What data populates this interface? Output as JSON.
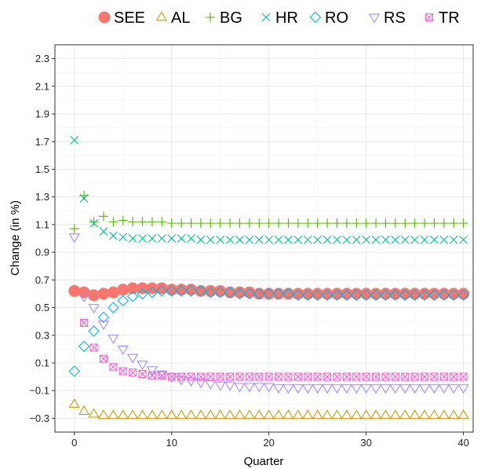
{
  "chart_data": {
    "type": "scatter",
    "title": "",
    "xlabel": "Quarter",
    "ylabel": "Change (in %)",
    "xlim": [
      -2,
      41
    ],
    "ylim": [
      -0.4,
      2.4
    ],
    "x_ticks": [
      0,
      10,
      20,
      30,
      40
    ],
    "x_tick_labels": [
      "0",
      "10",
      "20",
      "30",
      "40"
    ],
    "y_ticks": [
      -0.3,
      -0.1,
      0.1,
      0.3,
      0.5,
      0.7,
      0.9,
      1.1,
      1.3,
      1.5,
      1.7,
      1.9,
      2.1,
      2.3
    ],
    "y_tick_labels": [
      "−0.3",
      "−0.1",
      "0.1",
      "0.3",
      "0.5",
      "0.7",
      "0.9",
      "1.1",
      "1.3",
      "1.5",
      "1.7",
      "1.9",
      "2.1",
      "2.3"
    ],
    "grid": true,
    "legend_position": "top",
    "x": [
      0,
      1,
      2,
      3,
      4,
      5,
      6,
      7,
      8,
      9,
      10,
      11,
      12,
      13,
      14,
      15,
      16,
      17,
      18,
      19,
      20,
      21,
      22,
      23,
      24,
      25,
      26,
      27,
      28,
      29,
      30,
      31,
      32,
      33,
      34,
      35,
      36,
      37,
      38,
      39,
      40
    ],
    "series": [
      {
        "name": "SEE",
        "marker": "circle-filled",
        "color": "#f8766d",
        "values": [
          0.62,
          0.61,
          0.59,
          0.6,
          0.61,
          0.63,
          0.64,
          0.64,
          0.64,
          0.64,
          0.63,
          0.63,
          0.63,
          0.62,
          0.62,
          0.62,
          0.61,
          0.61,
          0.61,
          0.6,
          0.6,
          0.6,
          0.6,
          0.6,
          0.6,
          0.6,
          0.6,
          0.6,
          0.6,
          0.6,
          0.6,
          0.6,
          0.6,
          0.6,
          0.6,
          0.6,
          0.6,
          0.6,
          0.6,
          0.6,
          0.6
        ]
      },
      {
        "name": "AL",
        "marker": "triangle-up",
        "color": "#c49a00",
        "values": [
          -0.2,
          -0.25,
          -0.27,
          -0.28,
          -0.28,
          -0.28,
          -0.28,
          -0.28,
          -0.28,
          -0.28,
          -0.28,
          -0.28,
          -0.28,
          -0.28,
          -0.28,
          -0.28,
          -0.28,
          -0.28,
          -0.28,
          -0.28,
          -0.28,
          -0.28,
          -0.28,
          -0.28,
          -0.28,
          -0.28,
          -0.28,
          -0.28,
          -0.28,
          -0.28,
          -0.28,
          -0.28,
          -0.28,
          -0.28,
          -0.28,
          -0.28,
          -0.28,
          -0.28,
          -0.28,
          -0.28,
          -0.28
        ]
      },
      {
        "name": "BG",
        "marker": "plus",
        "color": "#53b400",
        "values": [
          1.07,
          1.31,
          1.12,
          1.16,
          1.12,
          1.13,
          1.12,
          1.12,
          1.12,
          1.12,
          1.11,
          1.11,
          1.11,
          1.11,
          1.11,
          1.11,
          1.11,
          1.11,
          1.11,
          1.11,
          1.11,
          1.11,
          1.11,
          1.11,
          1.11,
          1.11,
          1.11,
          1.11,
          1.11,
          1.11,
          1.11,
          1.11,
          1.11,
          1.11,
          1.11,
          1.11,
          1.11,
          1.11,
          1.11,
          1.11,
          1.11
        ]
      },
      {
        "name": "HR",
        "marker": "cross",
        "color": "#00c094",
        "values": [
          1.71,
          1.29,
          1.11,
          1.05,
          1.02,
          1.01,
          1.0,
          1.0,
          1.0,
          1.0,
          1.0,
          1.0,
          1.0,
          0.99,
          0.99,
          0.99,
          0.99,
          0.99,
          0.99,
          0.99,
          0.99,
          0.99,
          0.99,
          0.99,
          0.99,
          0.99,
          0.99,
          0.99,
          0.99,
          0.99,
          0.99,
          0.99,
          0.99,
          0.99,
          0.99,
          0.99,
          0.99,
          0.99,
          0.99,
          0.99,
          0.99
        ]
      },
      {
        "name": "RO",
        "marker": "diamond",
        "color": "#00b6eb",
        "values": [
          0.04,
          0.22,
          0.33,
          0.43,
          0.5,
          0.55,
          0.58,
          0.6,
          0.61,
          0.62,
          0.62,
          0.62,
          0.62,
          0.62,
          0.61,
          0.61,
          0.61,
          0.6,
          0.6,
          0.6,
          0.6,
          0.6,
          0.6,
          0.59,
          0.59,
          0.59,
          0.59,
          0.59,
          0.59,
          0.59,
          0.59,
          0.59,
          0.59,
          0.59,
          0.59,
          0.59,
          0.59,
          0.59,
          0.59,
          0.59,
          0.59
        ]
      },
      {
        "name": "RS",
        "marker": "triangle-down",
        "color": "#a58aff",
        "values": [
          1.01,
          0.58,
          0.5,
          0.38,
          0.28,
          0.2,
          0.14,
          0.09,
          0.05,
          0.02,
          0.0,
          -0.02,
          -0.03,
          -0.04,
          -0.05,
          -0.06,
          -0.06,
          -0.07,
          -0.07,
          -0.07,
          -0.07,
          -0.08,
          -0.08,
          -0.08,
          -0.08,
          -0.08,
          -0.08,
          -0.08,
          -0.08,
          -0.08,
          -0.08,
          -0.08,
          -0.08,
          -0.08,
          -0.08,
          -0.08,
          -0.08,
          -0.08,
          -0.08,
          -0.08,
          -0.08
        ]
      },
      {
        "name": "TR",
        "marker": "square-cross",
        "color": "#fb61d7",
        "values": [
          null,
          0.39,
          0.21,
          0.13,
          0.07,
          0.04,
          0.03,
          0.02,
          0.01,
          0.01,
          0.0,
          0.0,
          0.0,
          0.0,
          0.0,
          0.0,
          0.0,
          0.0,
          0.0,
          0.0,
          0.0,
          0.0,
          0.0,
          0.0,
          0.0,
          0.0,
          0.0,
          0.0,
          0.0,
          0.0,
          0.0,
          0.0,
          0.0,
          0.0,
          0.0,
          0.0,
          0.0,
          0.0,
          0.0,
          0.0,
          0.0
        ]
      }
    ]
  }
}
